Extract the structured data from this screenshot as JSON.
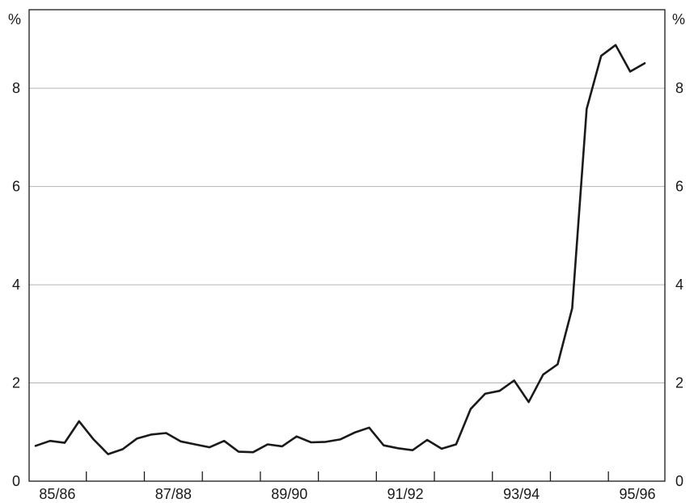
{
  "chart_data": {
    "type": "line",
    "title": "",
    "xlabel": "",
    "ylabel_left": "%",
    "ylabel_right": "%",
    "ylim": [
      0,
      9.6
    ],
    "y_ticks": [
      0,
      2,
      4,
      6,
      8
    ],
    "grid": true,
    "x_tick_labels": [
      "85/86",
      "87/88",
      "89/90",
      "91/92",
      "93/94",
      "95/96"
    ],
    "series": [
      {
        "values": [
          0.72,
          0.82,
          0.78,
          1.22,
          0.85,
          0.55,
          0.65,
          0.87,
          0.95,
          0.98,
          0.81,
          0.75,
          0.69,
          0.82,
          0.6,
          0.59,
          0.75,
          0.71,
          0.91,
          0.79,
          0.8,
          0.85,
          0.99,
          1.09,
          0.73,
          0.67,
          0.63,
          0.84,
          0.66,
          0.75,
          1.47,
          1.78,
          1.84,
          2.05,
          1.61,
          2.17,
          2.38,
          3.52,
          7.58,
          8.66,
          8.88,
          8.34,
          8.51
        ],
        "color": "#1a1a1a"
      }
    ]
  }
}
